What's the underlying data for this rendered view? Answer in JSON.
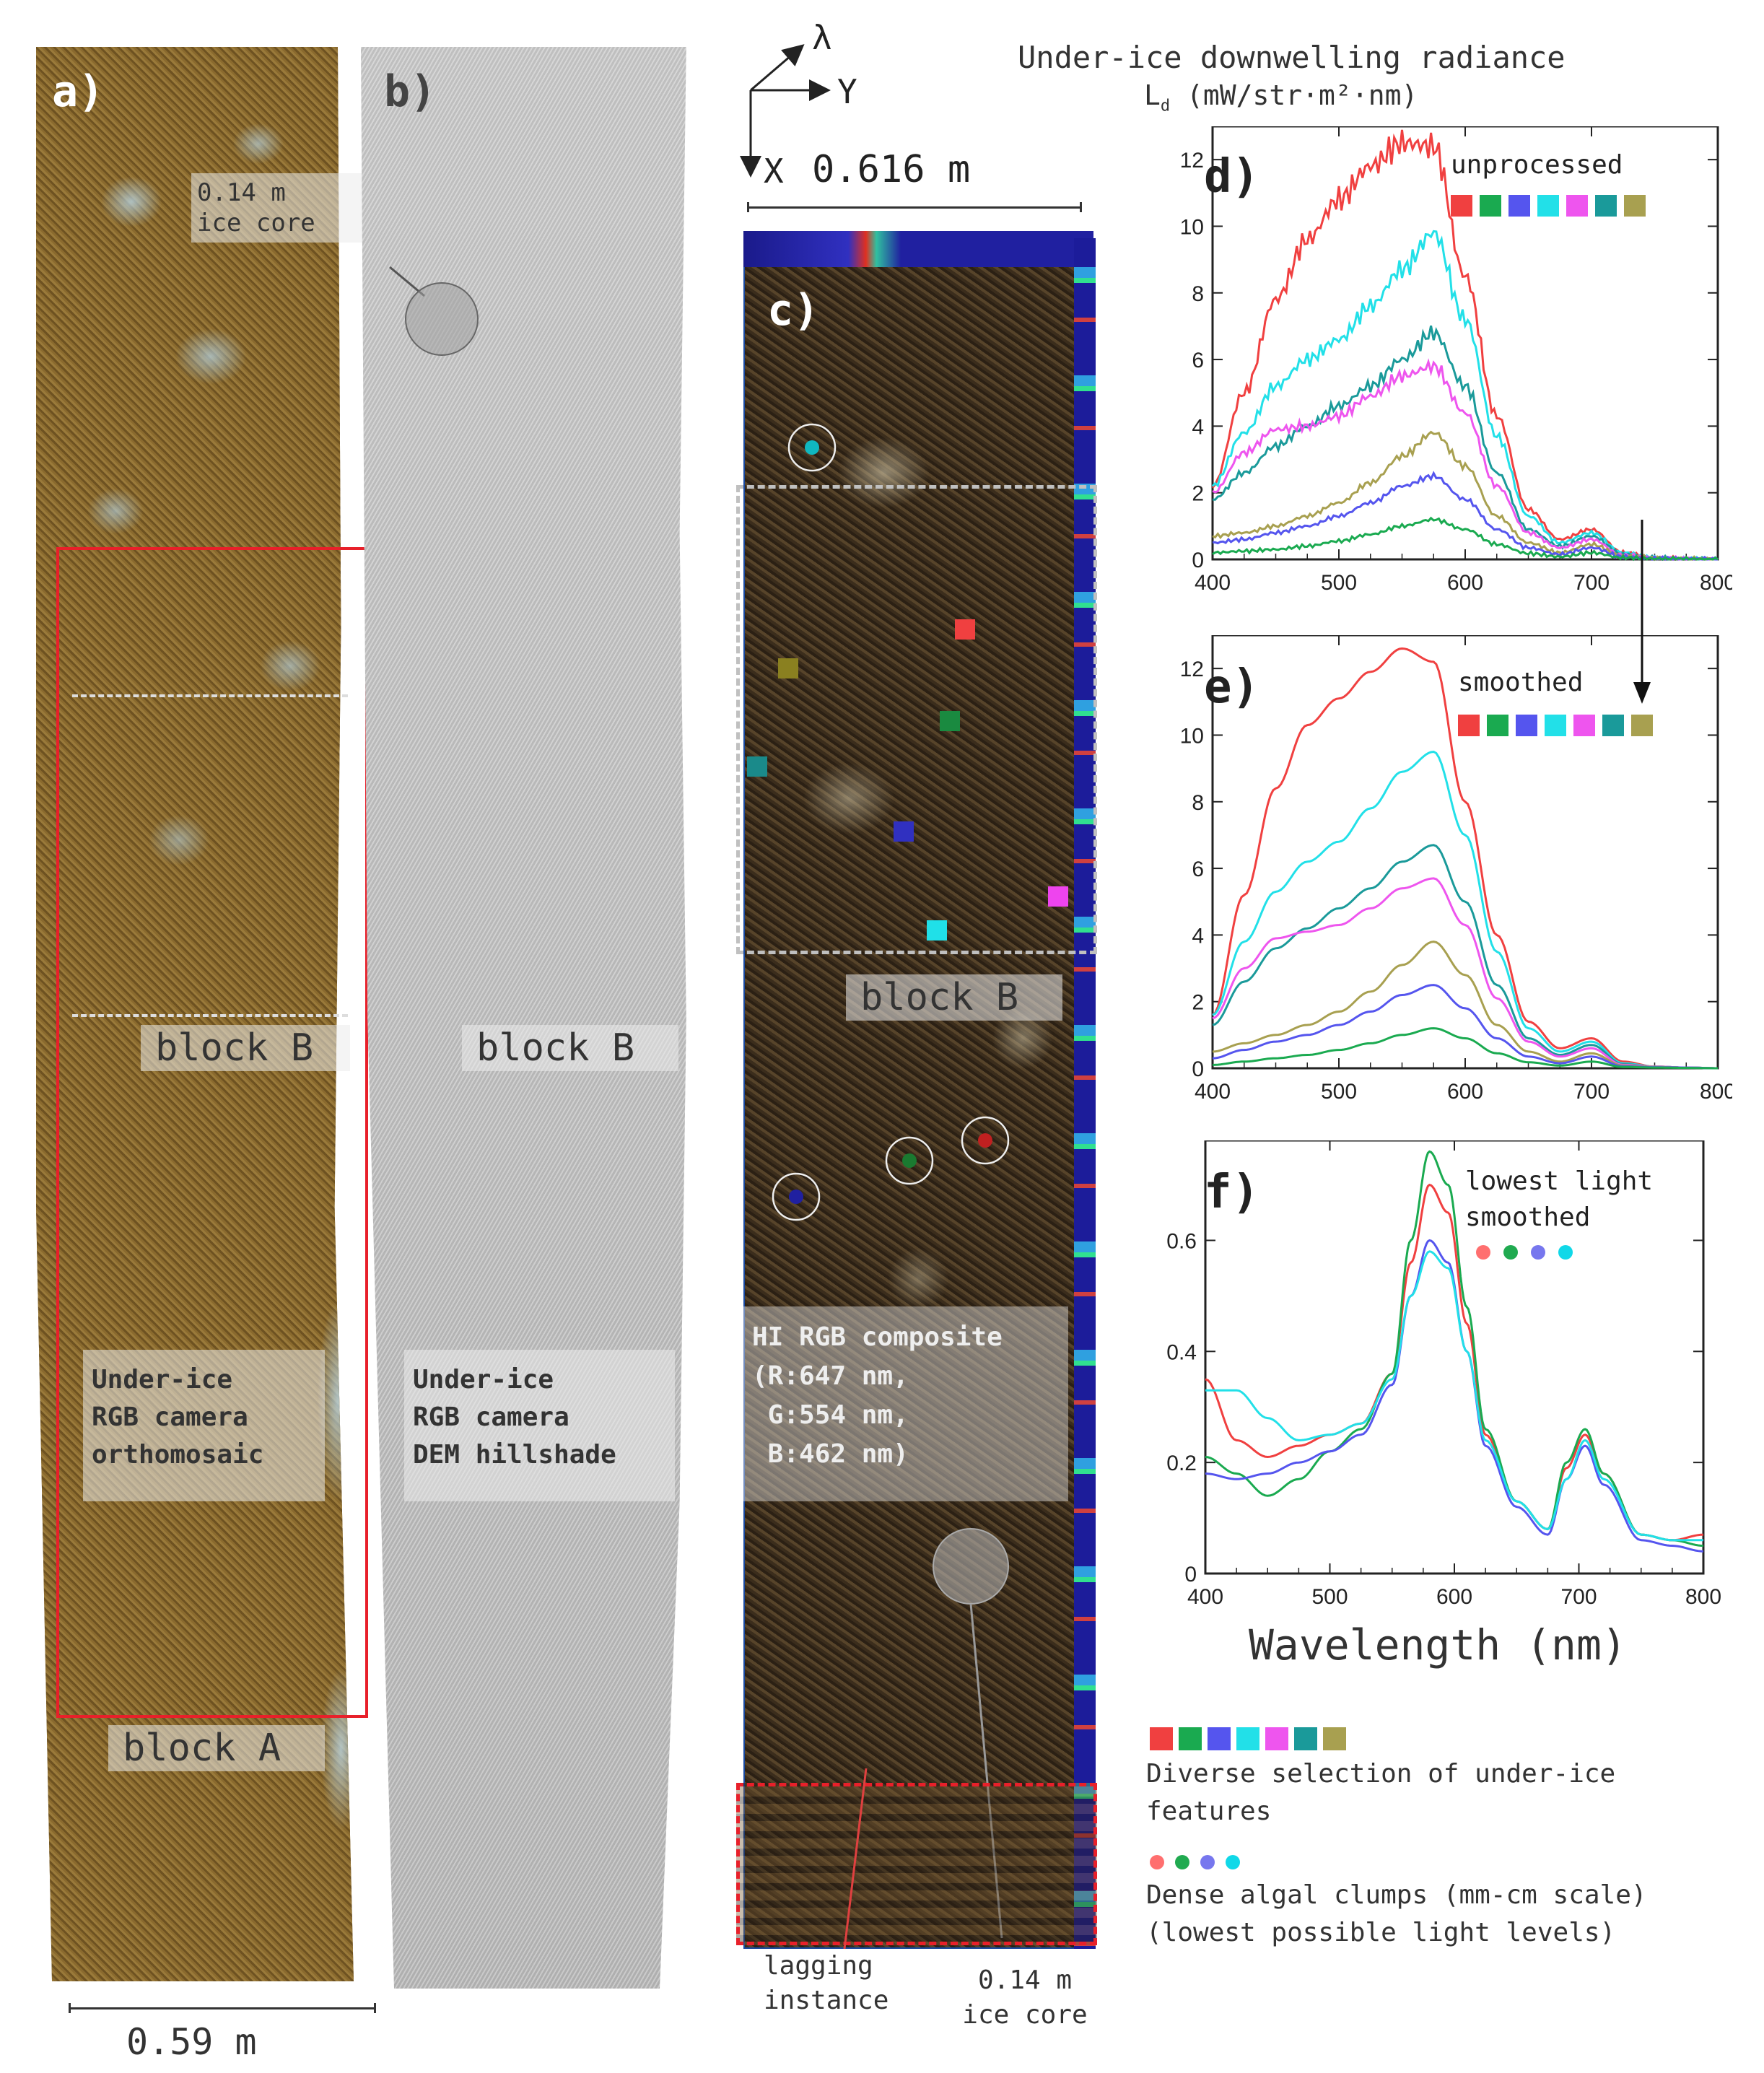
{
  "panel_a": {
    "letter": "a)",
    "ice_core_label": [
      "0.14 m",
      "ice core"
    ],
    "block_b": "block B",
    "block_a": "block A",
    "caption": [
      "Under-ice",
      "RGB camera",
      "orthomosaic"
    ],
    "scale": "0.59 m"
  },
  "panel_b": {
    "letter": "b)",
    "block_b": "block B",
    "caption": [
      "Under-ice",
      "RGB camera",
      "DEM hillshade"
    ]
  },
  "panel_c": {
    "letter": "c)",
    "axis_lambda": "λ",
    "axis_y": "Y",
    "axis_x": "X",
    "scale": "0.616 m",
    "block_b": "block B",
    "caption": [
      "HI RGB composite",
      "(R:647 nm,",
      " G:554 nm,",
      " B:462 nm)"
    ],
    "lagging": [
      "lagging",
      "instance"
    ],
    "ice_core": [
      "0.14 m",
      "ice core"
    ]
  },
  "header": {
    "title": "Under-ice downwelling radiance",
    "units": "(mW/str·m²·nm)",
    "symbol": "L",
    "subscript": "d"
  },
  "colors": {
    "features": [
      "#f04040",
      "#1aaa50",
      "#5555ee",
      "#22e0e8",
      "#ee55ee",
      "#1a9a9a",
      "#a8a050"
    ],
    "clumps": [
      "#ff6f6f",
      "#20aa50",
      "#7777ee",
      "#10d8e8"
    ]
  },
  "legend": {
    "features_text": [
      "Diverse selection of under-ice",
      "features"
    ],
    "clumps_text": [
      "Dense algal clumps (mm-cm scale)",
      "(lowest possible light levels)"
    ]
  },
  "chart_data": [
    {
      "panel": "d)",
      "type": "line",
      "title": "unprocessed",
      "xlim": [
        400,
        800
      ],
      "ylim": [
        0,
        13
      ],
      "xticks": [
        400,
        500,
        600,
        700,
        800
      ],
      "yticks": [
        0,
        2,
        4,
        6,
        8,
        10,
        12
      ],
      "x": [
        400,
        425,
        450,
        475,
        500,
        525,
        550,
        575,
        600,
        625,
        650,
        675,
        700,
        725,
        750,
        775,
        800
      ],
      "noisy": true,
      "series": [
        {
          "color": "#f04040",
          "values": [
            2.2,
            5.0,
            7.8,
            9.6,
            10.8,
            11.8,
            12.5,
            12.4,
            8.5,
            4.3,
            1.5,
            0.6,
            0.9,
            0.2,
            0.05,
            0.02,
            0.0
          ]
        },
        {
          "color": "#22e0e8",
          "values": [
            2.2,
            3.8,
            5.2,
            6.0,
            6.6,
            7.6,
            8.7,
            9.8,
            7.2,
            3.7,
            1.3,
            0.5,
            0.8,
            0.2,
            0.05,
            0.02,
            0.0
          ]
        },
        {
          "color": "#1a9a9a",
          "values": [
            1.8,
            2.6,
            3.4,
            4.0,
            4.6,
            5.2,
            6.0,
            6.8,
            5.2,
            2.6,
            0.9,
            0.4,
            0.7,
            0.15,
            0.05,
            0.02,
            0.0
          ]
        },
        {
          "color": "#ee55ee",
          "values": [
            2.0,
            3.2,
            3.9,
            4.0,
            4.3,
            4.9,
            5.5,
            5.8,
            4.4,
            2.2,
            0.8,
            0.35,
            0.6,
            0.12,
            0.05,
            0.02,
            0.0
          ]
        },
        {
          "color": "#a8a050",
          "values": [
            0.7,
            0.8,
            1.0,
            1.3,
            1.7,
            2.3,
            3.1,
            3.8,
            2.8,
            1.3,
            0.5,
            0.2,
            0.45,
            0.1,
            0.04,
            0.02,
            0.0
          ]
        },
        {
          "color": "#5555ee",
          "values": [
            0.5,
            0.6,
            0.8,
            1.0,
            1.3,
            1.7,
            2.2,
            2.5,
            1.8,
            0.9,
            0.35,
            0.15,
            0.35,
            0.08,
            0.03,
            0.02,
            0.0
          ]
        },
        {
          "color": "#1aaa50",
          "values": [
            0.2,
            0.25,
            0.3,
            0.4,
            0.55,
            0.75,
            1.0,
            1.2,
            0.9,
            0.45,
            0.18,
            0.08,
            0.2,
            0.05,
            0.02,
            0.01,
            0.0
          ]
        }
      ]
    },
    {
      "panel": "e)",
      "type": "line",
      "title": "smoothed",
      "xlim": [
        400,
        800
      ],
      "ylim": [
        0,
        13
      ],
      "xticks": [
        400,
        500,
        600,
        700,
        800
      ],
      "yticks": [
        0,
        2,
        4,
        6,
        8,
        10,
        12
      ],
      "x": [
        400,
        425,
        450,
        475,
        500,
        525,
        550,
        575,
        600,
        625,
        650,
        675,
        700,
        725,
        750,
        775,
        800
      ],
      "noisy": false,
      "series": [
        {
          "color": "#f04040",
          "values": [
            1.6,
            5.2,
            8.4,
            10.3,
            11.1,
            11.9,
            12.6,
            12.2,
            8.0,
            4.0,
            1.4,
            0.6,
            0.9,
            0.2,
            0.05,
            0.02,
            0.0
          ]
        },
        {
          "color": "#22e0e8",
          "values": [
            1.6,
            3.8,
            5.3,
            6.2,
            6.8,
            7.8,
            8.9,
            9.5,
            7.0,
            3.5,
            1.2,
            0.5,
            0.8,
            0.15,
            0.05,
            0.02,
            0.0
          ]
        },
        {
          "color": "#1a9a9a",
          "values": [
            1.3,
            2.6,
            3.6,
            4.2,
            4.8,
            5.4,
            6.2,
            6.7,
            5.0,
            2.5,
            0.9,
            0.4,
            0.7,
            0.12,
            0.05,
            0.02,
            0.0
          ]
        },
        {
          "color": "#ee55ee",
          "values": [
            1.5,
            3.0,
            3.9,
            4.1,
            4.3,
            4.8,
            5.4,
            5.7,
            4.3,
            2.1,
            0.8,
            0.35,
            0.6,
            0.1,
            0.05,
            0.02,
            0.0
          ]
        },
        {
          "color": "#a8a050",
          "values": [
            0.5,
            0.75,
            1.0,
            1.3,
            1.7,
            2.3,
            3.1,
            3.8,
            2.8,
            1.3,
            0.5,
            0.2,
            0.45,
            0.08,
            0.04,
            0.02,
            0.0
          ]
        },
        {
          "color": "#5555ee",
          "values": [
            0.3,
            0.55,
            0.8,
            1.0,
            1.3,
            1.7,
            2.2,
            2.5,
            1.8,
            0.9,
            0.35,
            0.15,
            0.35,
            0.06,
            0.03,
            0.02,
            0.0
          ]
        },
        {
          "color": "#1aaa50",
          "values": [
            0.1,
            0.2,
            0.3,
            0.4,
            0.55,
            0.75,
            1.0,
            1.2,
            0.9,
            0.45,
            0.18,
            0.08,
            0.2,
            0.04,
            0.02,
            0.01,
            0.0
          ]
        }
      ]
    },
    {
      "panel": "f)",
      "type": "line",
      "title": "lowest light smoothed",
      "xlabel": "Wavelength (nm)",
      "xlim": [
        400,
        800
      ],
      "ylim": [
        0,
        0.78
      ],
      "xticks": [
        400,
        500,
        600,
        700,
        800
      ],
      "yticks": [
        0,
        0.2,
        0.4,
        0.6
      ],
      "x": [
        400,
        425,
        450,
        475,
        500,
        525,
        550,
        565,
        580,
        595,
        610,
        625,
        650,
        675,
        690,
        705,
        720,
        750,
        775,
        800
      ],
      "noisy": false,
      "series": [
        {
          "color": "#f04040",
          "values": [
            0.35,
            0.24,
            0.21,
            0.23,
            0.25,
            0.27,
            0.36,
            0.56,
            0.7,
            0.65,
            0.45,
            0.25,
            0.13,
            0.08,
            0.19,
            0.25,
            0.18,
            0.07,
            0.06,
            0.07
          ]
        },
        {
          "color": "#1aaa50",
          "values": [
            0.21,
            0.18,
            0.14,
            0.17,
            0.22,
            0.26,
            0.36,
            0.6,
            0.76,
            0.7,
            0.48,
            0.26,
            0.13,
            0.08,
            0.2,
            0.26,
            0.18,
            0.07,
            0.06,
            0.05
          ]
        },
        {
          "color": "#5555ee",
          "values": [
            0.18,
            0.17,
            0.18,
            0.2,
            0.22,
            0.25,
            0.34,
            0.5,
            0.6,
            0.56,
            0.4,
            0.23,
            0.12,
            0.07,
            0.17,
            0.23,
            0.16,
            0.06,
            0.05,
            0.04
          ]
        },
        {
          "color": "#22e0e8",
          "values": [
            0.33,
            0.33,
            0.28,
            0.24,
            0.25,
            0.27,
            0.35,
            0.5,
            0.58,
            0.55,
            0.4,
            0.24,
            0.13,
            0.08,
            0.17,
            0.24,
            0.17,
            0.07,
            0.06,
            0.06
          ]
        }
      ]
    }
  ]
}
